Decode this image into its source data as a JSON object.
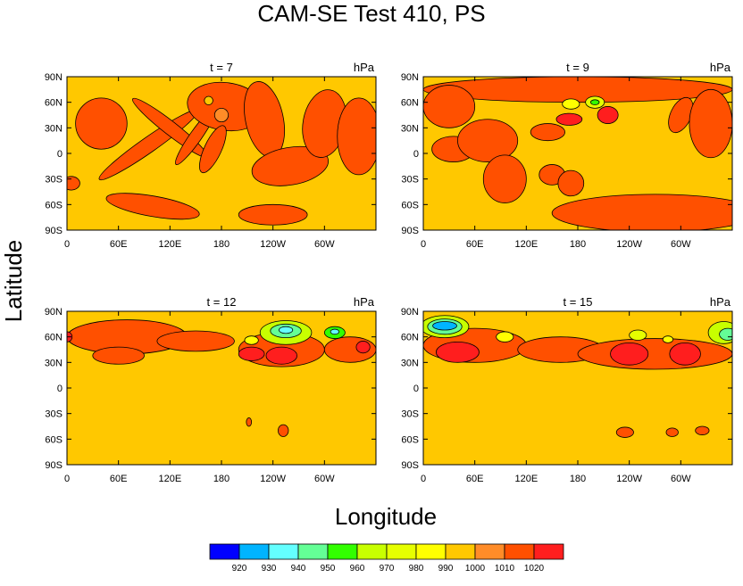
{
  "figure": {
    "title": "CAM-SE Test 410, PS",
    "xlabel": "Longitude",
    "ylabel": "Latitude"
  },
  "colors": {
    "background_fill": "#ffc800",
    "contour_line": "#000000",
    "frame": "#000000"
  },
  "colorbar": {
    "labels": [
      "920",
      "930",
      "940",
      "950",
      "960",
      "970",
      "980",
      "990",
      "1000",
      "1010",
      "1020"
    ],
    "colors": [
      "#0000ff",
      "#00b4ff",
      "#64ffff",
      "#64ff96",
      "#32ff00",
      "#c8ff00",
      "#e6ff00",
      "#ffff00",
      "#ffc800",
      "#ff8c28",
      "#ff5000",
      "#ff1e1e"
    ]
  },
  "chart_data": [
    {
      "type": "contour",
      "title": "t = 7",
      "units": "hPa",
      "xticks": [
        "0",
        "60E",
        "120E",
        "180",
        "120W",
        "60W"
      ],
      "yticks": [
        "90N",
        "60N",
        "30N",
        "0",
        "30S",
        "60S",
        "90S"
      ],
      "xlim": [
        0,
        360
      ],
      "ylim": [
        -90,
        90
      ],
      "blobs": [
        {
          "lon": 40,
          "lat": 35,
          "rx": 30,
          "ry": 30,
          "rot": 0,
          "level": "1010"
        },
        {
          "lon": 95,
          "lat": 10,
          "rx": 70,
          "ry": 9,
          "rot": 35,
          "level": "1010"
        },
        {
          "lon": 120,
          "lat": 30,
          "rx": 55,
          "ry": 8,
          "rot": -38,
          "level": "1010"
        },
        {
          "lon": 150,
          "lat": 20,
          "rx": 40,
          "ry": 7,
          "rot": 55,
          "level": "1010"
        },
        {
          "lon": 185,
          "lat": 55,
          "rx": 45,
          "ry": 28,
          "rot": -8,
          "level": "1010"
        },
        {
          "lon": 170,
          "lat": 5,
          "rx": 30,
          "ry": 10,
          "rot": 65,
          "level": "1010"
        },
        {
          "lon": 230,
          "lat": 40,
          "rx": 22,
          "ry": 45,
          "rot": 12,
          "level": "1010"
        },
        {
          "lon": 260,
          "lat": -15,
          "rx": 45,
          "ry": 22,
          "rot": 10,
          "level": "1010"
        },
        {
          "lon": 300,
          "lat": 35,
          "rx": 25,
          "ry": 40,
          "rot": -10,
          "level": "1010"
        },
        {
          "lon": 340,
          "lat": 20,
          "rx": 25,
          "ry": 45,
          "rot": 0,
          "level": "1010"
        },
        {
          "lon": 100,
          "lat": -62,
          "rx": 55,
          "ry": 12,
          "rot": -10,
          "level": "1010"
        },
        {
          "lon": 240,
          "lat": -72,
          "rx": 40,
          "ry": 12,
          "rot": 0,
          "level": "1010"
        },
        {
          "lon": 5,
          "lat": -35,
          "rx": 10,
          "ry": 8,
          "rot": 0,
          "level": "1010"
        },
        {
          "lon": 165,
          "lat": 62,
          "rx": 5,
          "ry": 5,
          "rot": 0,
          "level": "990"
        },
        {
          "lon": 180,
          "lat": 45,
          "rx": 8,
          "ry": 8,
          "rot": 0,
          "level": "1000"
        }
      ]
    },
    {
      "type": "contour",
      "title": "t = 9",
      "units": "hPa",
      "xticks": [
        "0",
        "60E",
        "120E",
        "180",
        "120W",
        "60W"
      ],
      "yticks": [
        "90N",
        "60N",
        "30N",
        "0",
        "30S",
        "60S",
        "90S"
      ],
      "xlim": [
        0,
        360
      ],
      "ylim": [
        -90,
        90
      ],
      "blobs": [
        {
          "lon": 180,
          "lat": 75,
          "rx": 180,
          "ry": 15,
          "rot": 0,
          "level": "1010"
        },
        {
          "lon": 30,
          "lat": 55,
          "rx": 30,
          "ry": 25,
          "rot": 0,
          "level": "1010"
        },
        {
          "lon": 35,
          "lat": 5,
          "rx": 25,
          "ry": 15,
          "rot": 0,
          "level": "1010"
        },
        {
          "lon": 75,
          "lat": 15,
          "rx": 35,
          "ry": 25,
          "rot": 0,
          "level": "1010"
        },
        {
          "lon": 95,
          "lat": -30,
          "rx": 25,
          "ry": 28,
          "rot": 0,
          "level": "1010"
        },
        {
          "lon": 150,
          "lat": -25,
          "rx": 15,
          "ry": 12,
          "rot": 0,
          "level": "1010"
        },
        {
          "lon": 172,
          "lat": -35,
          "rx": 15,
          "ry": 15,
          "rot": 0,
          "level": "1010"
        },
        {
          "lon": 145,
          "lat": 25,
          "rx": 20,
          "ry": 10,
          "rot": 0,
          "level": "1010"
        },
        {
          "lon": 270,
          "lat": -70,
          "rx": 120,
          "ry": 22,
          "rot": 0,
          "level": "1010"
        },
        {
          "lon": 300,
          "lat": 45,
          "rx": 12,
          "ry": 22,
          "rot": -25,
          "level": "1010"
        },
        {
          "lon": 335,
          "lat": 35,
          "rx": 25,
          "ry": 40,
          "rot": 0,
          "level": "1010"
        },
        {
          "lon": 170,
          "lat": 40,
          "rx": 15,
          "ry": 7,
          "rot": 0,
          "level": "1020"
        },
        {
          "lon": 215,
          "lat": 45,
          "rx": 12,
          "ry": 10,
          "rot": 0,
          "level": "1020"
        },
        {
          "lon": 172,
          "lat": 58,
          "rx": 10,
          "ry": 6,
          "rot": 0,
          "level": "980"
        },
        {
          "lon": 200,
          "lat": 60,
          "rx": 11,
          "ry": 7,
          "rot": 0,
          "level": "970"
        },
        {
          "lon": 200,
          "lat": 60,
          "rx": 5,
          "ry": 3,
          "rot": 0,
          "level": "950"
        }
      ]
    },
    {
      "type": "contour",
      "title": "t = 12",
      "units": "hPa",
      "xticks": [
        "0",
        "60E",
        "120E",
        "180",
        "120W",
        "60W"
      ],
      "yticks": [
        "90N",
        "60N",
        "30N",
        "0",
        "30S",
        "60S",
        "90S"
      ],
      "xlim": [
        0,
        360
      ],
      "ylim": [
        -90,
        90
      ],
      "blobs": [
        {
          "lon": 70,
          "lat": 60,
          "rx": 70,
          "ry": 20,
          "rot": 0,
          "level": "1010"
        },
        {
          "lon": 150,
          "lat": 55,
          "rx": 45,
          "ry": 12,
          "rot": 0,
          "level": "1010"
        },
        {
          "lon": 60,
          "lat": 38,
          "rx": 30,
          "ry": 10,
          "rot": 0,
          "level": "1010"
        },
        {
          "lon": 250,
          "lat": 45,
          "rx": 50,
          "ry": 20,
          "rot": 0,
          "level": "1010"
        },
        {
          "lon": 330,
          "lat": 45,
          "rx": 30,
          "ry": 15,
          "rot": 0,
          "level": "1010"
        },
        {
          "lon": 0,
          "lat": 60,
          "rx": 6,
          "ry": 6,
          "rot": 0,
          "level": "1020"
        },
        {
          "lon": 215,
          "lat": 40,
          "rx": 15,
          "ry": 8,
          "rot": 0,
          "level": "1020"
        },
        {
          "lon": 250,
          "lat": 38,
          "rx": 18,
          "ry": 10,
          "rot": 0,
          "level": "1020"
        },
        {
          "lon": 345,
          "lat": 48,
          "rx": 8,
          "ry": 7,
          "rot": 0,
          "level": "1020"
        },
        {
          "lon": 255,
          "lat": 65,
          "rx": 30,
          "ry": 14,
          "rot": 0,
          "level": "960"
        },
        {
          "lon": 255,
          "lat": 67,
          "rx": 18,
          "ry": 8,
          "rot": 0,
          "level": "940"
        },
        {
          "lon": 255,
          "lat": 68,
          "rx": 8,
          "ry": 4,
          "rot": 0,
          "level": "930"
        },
        {
          "lon": 215,
          "lat": 56,
          "rx": 8,
          "ry": 5,
          "rot": 0,
          "level": "980"
        },
        {
          "lon": 312,
          "lat": 65,
          "rx": 12,
          "ry": 7,
          "rot": 0,
          "level": "950"
        },
        {
          "lon": 312,
          "lat": 66,
          "rx": 5,
          "ry": 3,
          "rot": 0,
          "level": "930"
        },
        {
          "lon": 212,
          "lat": -40,
          "rx": 3,
          "ry": 5,
          "rot": 0,
          "level": "1010"
        },
        {
          "lon": 252,
          "lat": -50,
          "rx": 6,
          "ry": 7,
          "rot": 0,
          "level": "1010"
        }
      ]
    },
    {
      "type": "contour",
      "title": "t = 15",
      "units": "hPa",
      "xticks": [
        "0",
        "60E",
        "120E",
        "180",
        "120W",
        "60W"
      ],
      "yticks": [
        "90N",
        "60N",
        "30N",
        "0",
        "30S",
        "60S",
        "90S"
      ],
      "xlim": [
        0,
        360
      ],
      "ylim": [
        -90,
        90
      ],
      "blobs": [
        {
          "lon": 60,
          "lat": 50,
          "rx": 60,
          "ry": 20,
          "rot": 0,
          "level": "1010"
        },
        {
          "lon": 160,
          "lat": 45,
          "rx": 50,
          "ry": 15,
          "rot": 0,
          "level": "1010"
        },
        {
          "lon": 270,
          "lat": 40,
          "rx": 90,
          "ry": 18,
          "rot": 0,
          "level": "1010"
        },
        {
          "lon": 40,
          "lat": 42,
          "rx": 25,
          "ry": 12,
          "rot": 0,
          "level": "1020"
        },
        {
          "lon": 240,
          "lat": 40,
          "rx": 22,
          "ry": 13,
          "rot": 0,
          "level": "1020"
        },
        {
          "lon": 305,
          "lat": 40,
          "rx": 18,
          "ry": 13,
          "rot": 0,
          "level": "1020"
        },
        {
          "lon": 25,
          "lat": 72,
          "rx": 28,
          "ry": 13,
          "rot": 0,
          "level": "960"
        },
        {
          "lon": 25,
          "lat": 72,
          "rx": 20,
          "ry": 9,
          "rot": 0,
          "level": "940"
        },
        {
          "lon": 25,
          "lat": 73,
          "rx": 14,
          "ry": 5,
          "rot": 0,
          "level": "920"
        },
        {
          "lon": 350,
          "lat": 65,
          "rx": 18,
          "ry": 13,
          "rot": 0,
          "level": "960"
        },
        {
          "lon": 355,
          "lat": 63,
          "rx": 10,
          "ry": 7,
          "rot": 0,
          "level": "940"
        },
        {
          "lon": 95,
          "lat": 60,
          "rx": 10,
          "ry": 6,
          "rot": 0,
          "level": "980"
        },
        {
          "lon": 250,
          "lat": 62,
          "rx": 10,
          "ry": 6,
          "rot": 0,
          "level": "970"
        },
        {
          "lon": 285,
          "lat": 57,
          "rx": 6,
          "ry": 4,
          "rot": 0,
          "level": "980"
        },
        {
          "lon": 235,
          "lat": -52,
          "rx": 10,
          "ry": 6,
          "rot": 0,
          "level": "1010"
        },
        {
          "lon": 290,
          "lat": -52,
          "rx": 7,
          "ry": 5,
          "rot": 0,
          "level": "1010"
        },
        {
          "lon": 325,
          "lat": -50,
          "rx": 8,
          "ry": 5,
          "rot": 0,
          "level": "1010"
        }
      ]
    }
  ]
}
